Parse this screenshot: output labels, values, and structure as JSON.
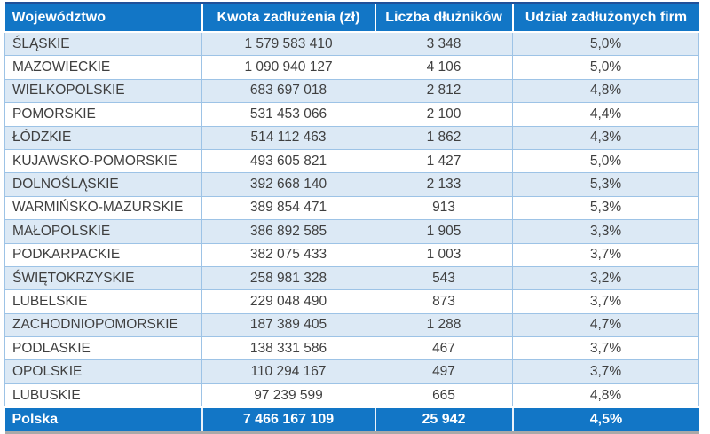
{
  "colors": {
    "header_bg": "#1276C6",
    "top_accent_border": "#20519A",
    "row_alt_bg": "#DCE9F5",
    "row_bg": "#FFFFFF",
    "grid_border": "#9DC3E6",
    "bottom_shadow": "#A9A9A9",
    "header_text": "#FFFFFF",
    "body_text": "#3F3F3F"
  },
  "table": {
    "columns": [
      "Województwo",
      "Kwota zadłużenia (zł)",
      "Liczba dłużników",
      "Udział zadłużonych firm"
    ],
    "rows": [
      {
        "region": "ŚLĄSKIE",
        "amount": "1 579 583 410",
        "debtors": "3 348",
        "share": "5,0%"
      },
      {
        "region": "MAZOWIECKIE",
        "amount": "1 090 940 127",
        "debtors": "4 106",
        "share": "5,0%"
      },
      {
        "region": "WIELKOPOLSKIE",
        "amount": "683 697 018",
        "debtors": "2 812",
        "share": "4,8%"
      },
      {
        "region": "POMORSKIE",
        "amount": "531 453 066",
        "debtors": "2 100",
        "share": "4,4%"
      },
      {
        "region": "ŁÓDZKIE",
        "amount": "514 112 463",
        "debtors": "1 862",
        "share": "4,3%"
      },
      {
        "region": "KUJAWSKO-POMORSKIE",
        "amount": "493 605 821",
        "debtors": "1 427",
        "share": "5,0%"
      },
      {
        "region": "DOLNOŚLĄSKIE",
        "amount": "392 668 140",
        "debtors": "2 133",
        "share": "5,3%"
      },
      {
        "region": "WARMIŃSKO-MAZURSKIE",
        "amount": "389 854 471",
        "debtors": "913",
        "share": "5,3%"
      },
      {
        "region": "MAŁOPOLSKIE",
        "amount": "386 892 585",
        "debtors": "1 905",
        "share": "3,3%"
      },
      {
        "region": "PODKARPACKIE",
        "amount": "382 075 433",
        "debtors": "1 003",
        "share": "3,7%"
      },
      {
        "region": "ŚWIĘTOKRZYSKIE",
        "amount": "258 981 328",
        "debtors": "543",
        "share": "3,2%"
      },
      {
        "region": "LUBELSKIE",
        "amount": "229 048 490",
        "debtors": "873",
        "share": "3,7%"
      },
      {
        "region": "ZACHODNIOPOMORSKIE",
        "amount": "187 389 405",
        "debtors": "1 288",
        "share": "4,7%"
      },
      {
        "region": "PODLASKIE",
        "amount": "138 331 586",
        "debtors": "467",
        "share": "3,7%"
      },
      {
        "region": "OPOLSKIE",
        "amount": "110 294 167",
        "debtors": "497",
        "share": "3,7%"
      },
      {
        "region": "LUBUSKIE",
        "amount": "97 239 599",
        "debtors": "665",
        "share": "4,8%"
      }
    ],
    "total": {
      "region": "Polska",
      "amount": "7 466 167 109",
      "debtors": "25 942",
      "share": "4,5%"
    }
  },
  "chart_data": {
    "type": "table",
    "columns": [
      "Województwo",
      "Kwota zadłużenia (zł)",
      "Liczba dłużników",
      "Udział zadłużonych firm"
    ],
    "rows": [
      [
        "ŚLĄSKIE",
        1579583410,
        3348,
        "5,0%"
      ],
      [
        "MAZOWIECKIE",
        1090940127,
        4106,
        "5,0%"
      ],
      [
        "WIELKOPOLSKIE",
        683697018,
        2812,
        "4,8%"
      ],
      [
        "POMORSKIE",
        531453066,
        2100,
        "4,4%"
      ],
      [
        "ŁÓDZKIE",
        514112463,
        1862,
        "4,3%"
      ],
      [
        "KUJAWSKO-POMORSKIE",
        493605821,
        1427,
        "5,0%"
      ],
      [
        "DOLNOŚLĄSKIE",
        392668140,
        2133,
        "5,3%"
      ],
      [
        "WARMIŃSKO-MAZURSKIE",
        389854471,
        913,
        "5,3%"
      ],
      [
        "MAŁOPOLSKIE",
        386892585,
        1905,
        "3,3%"
      ],
      [
        "PODKARPACKIE",
        382075433,
        1003,
        "3,7%"
      ],
      [
        "ŚWIĘTOKRZYSKIE",
        258981328,
        543,
        "3,2%"
      ],
      [
        "LUBELSKIE",
        229048490,
        873,
        "3,7%"
      ],
      [
        "ZACHODNIOPOMORSKIE",
        187389405,
        1288,
        "4,7%"
      ],
      [
        "PODLASKIE",
        138331586,
        467,
        "3,7%"
      ],
      [
        "OPOLSKIE",
        110294167,
        497,
        "3,7%"
      ],
      [
        "LUBUSKIE",
        97239599,
        665,
        "4,8%"
      ]
    ],
    "total_row": [
      "Polska",
      7466167109,
      25942,
      "4,5%"
    ]
  }
}
